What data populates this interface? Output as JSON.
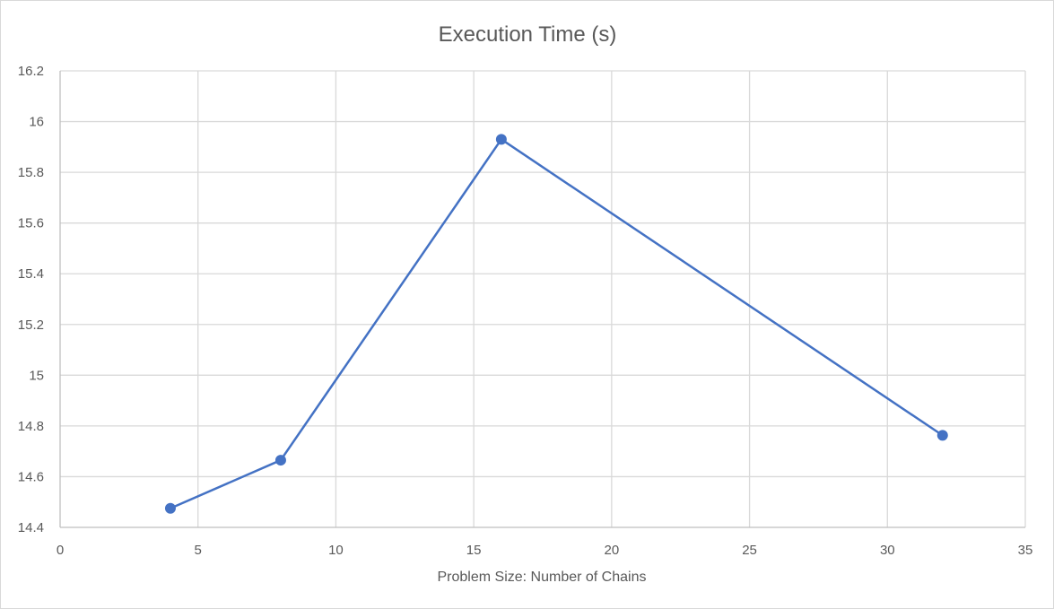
{
  "chart_data": {
    "type": "scatter",
    "mode": "lines+markers",
    "title": "Execution Time (s)",
    "xlabel": "Problem Size: Number of Chains",
    "ylabel": "",
    "xlim": [
      0,
      35
    ],
    "ylim": [
      14.4,
      16.2
    ],
    "x_ticks": [
      0,
      5,
      10,
      15,
      20,
      25,
      30,
      35
    ],
    "y_ticks": [
      14.4,
      14.6,
      14.8,
      15,
      15.2,
      15.4,
      15.6,
      15.8,
      16,
      16.2
    ],
    "x_tick_labels": [
      "0",
      "5",
      "10",
      "15",
      "20",
      "25",
      "30",
      "35"
    ],
    "y_tick_labels": [
      "14.4",
      "14.6",
      "14.8",
      "15",
      "15.2",
      "15.4",
      "15.6",
      "15.8",
      "16",
      "16.2"
    ],
    "grid": true,
    "legend": "none",
    "series": [
      {
        "x": [
          4,
          8,
          16,
          32
        ],
        "y": [
          14.475,
          14.665,
          15.93,
          14.763
        ],
        "color": "#4472c4"
      }
    ],
    "colors": {
      "grid": "#d9d9d9",
      "axis": "#bfbfbf",
      "text": "#595959",
      "series": "#4472c4"
    }
  }
}
